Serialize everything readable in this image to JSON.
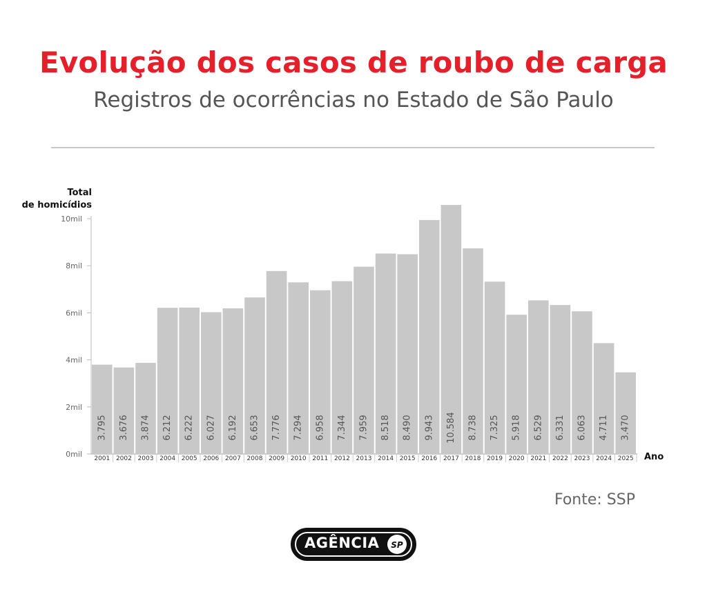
{
  "title": "Evolução dos casos de roubo de carga",
  "subtitle": "Registros de ocorrências no Estado de São Paulo",
  "source": "Fonte: SSP",
  "logo": {
    "text": "AGÊNCIA",
    "badge": "SP"
  },
  "colors": {
    "title": "#e4202a",
    "bar": "#c8c8c8",
    "subtitle": "#555555"
  },
  "chart_data": {
    "type": "bar",
    "ylabel_lines": [
      "Total",
      "de homicídios"
    ],
    "xlabel": "Ano",
    "ylim": [
      0,
      10000
    ],
    "yticks": [
      {
        "value": 0,
        "label": "0mil"
      },
      {
        "value": 2000,
        "label": "2mil"
      },
      {
        "value": 4000,
        "label": "4mil"
      },
      {
        "value": 6000,
        "label": "6mil"
      },
      {
        "value": 8000,
        "label": "8mil"
      },
      {
        "value": 10000,
        "label": "10mil"
      }
    ],
    "grid": false,
    "categories": [
      "2001",
      "2002",
      "2003",
      "2004",
      "2005",
      "2006",
      "2007",
      "2008",
      "2009",
      "2010",
      "2011",
      "2012",
      "2013",
      "2014",
      "2015",
      "2016",
      "2017",
      "2018",
      "2019",
      "2020",
      "2021",
      "2022",
      "2023",
      "2024",
      "2025"
    ],
    "values": [
      3795,
      3676,
      3874,
      6212,
      6222,
      6027,
      6192,
      6653,
      7776,
      7294,
      6958,
      7344,
      7959,
      8518,
      8490,
      9943,
      10584,
      8738,
      7325,
      5918,
      6529,
      6331,
      6063,
      4711,
      3470
    ],
    "value_labels": [
      "3.795",
      "3.676",
      "3.874",
      "6.212",
      "6.222",
      "6.027",
      "6.192",
      "6.653",
      "7.776",
      "7.294",
      "6.958",
      "7.344",
      "7.959",
      "8.518",
      "8.490",
      "9.943",
      "10.584",
      "8.738",
      "7.325",
      "5.918",
      "6.529",
      "6.331",
      "6.063",
      "4.711",
      "3.470"
    ]
  }
}
